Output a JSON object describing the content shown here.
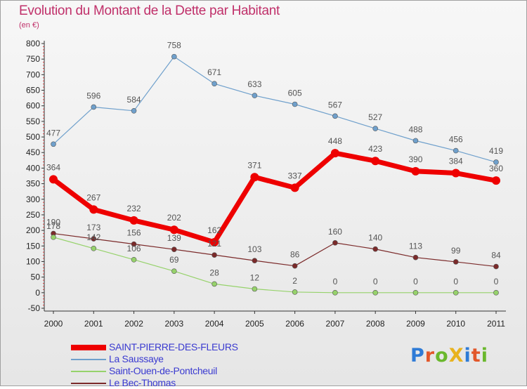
{
  "header": {
    "title": "Evolution du Montant de la Dette par Habitant",
    "subtitle": "(en €)"
  },
  "logo": {
    "text": "ProXiti",
    "colors": [
      "#2e7bd6",
      "#e2572a",
      "#6ab82d",
      "#e8b21e",
      "#2e7bd6",
      "#e2572a",
      "#6ab82d"
    ]
  },
  "chart_data": {
    "type": "line",
    "title": "Evolution du Montant de la Dette par Habitant",
    "subtitle": "(en €)",
    "xlabel": "",
    "ylabel": "",
    "x": [
      "2000",
      "2001",
      "2002",
      "2003",
      "2004",
      "2005",
      "2006",
      "2007",
      "2008",
      "2009",
      "2010",
      "2011"
    ],
    "ylim": [
      -50,
      800
    ],
    "yticks": [
      -50,
      0,
      50,
      100,
      150,
      200,
      250,
      300,
      350,
      400,
      450,
      500,
      550,
      600,
      650,
      700,
      750,
      800
    ],
    "grid": false,
    "legend_position": "bottom-left",
    "series": [
      {
        "name": "SAINT-PIERRE-DES-FLEURS",
        "color": "#ee0000",
        "values": [
          364,
          267,
          232,
          202,
          162,
          371,
          337,
          448,
          423,
          390,
          384,
          360
        ]
      },
      {
        "name": "La Saussaye",
        "color": "#6fa0cc",
        "values": [
          477,
          596,
          584,
          758,
          671,
          633,
          605,
          567,
          527,
          488,
          456,
          419
        ]
      },
      {
        "name": "Saint-Ouen-de-Pontcheuil",
        "color": "#96d26b",
        "values": [
          178,
          142,
          106,
          69,
          28,
          12,
          2,
          0,
          0,
          0,
          0,
          0
        ]
      },
      {
        "name": "Le Bec-Thomas",
        "color": "#7b2a2a",
        "values": [
          190,
          173,
          156,
          139,
          121,
          103,
          86,
          160,
          140,
          113,
          99,
          84
        ]
      }
    ]
  }
}
